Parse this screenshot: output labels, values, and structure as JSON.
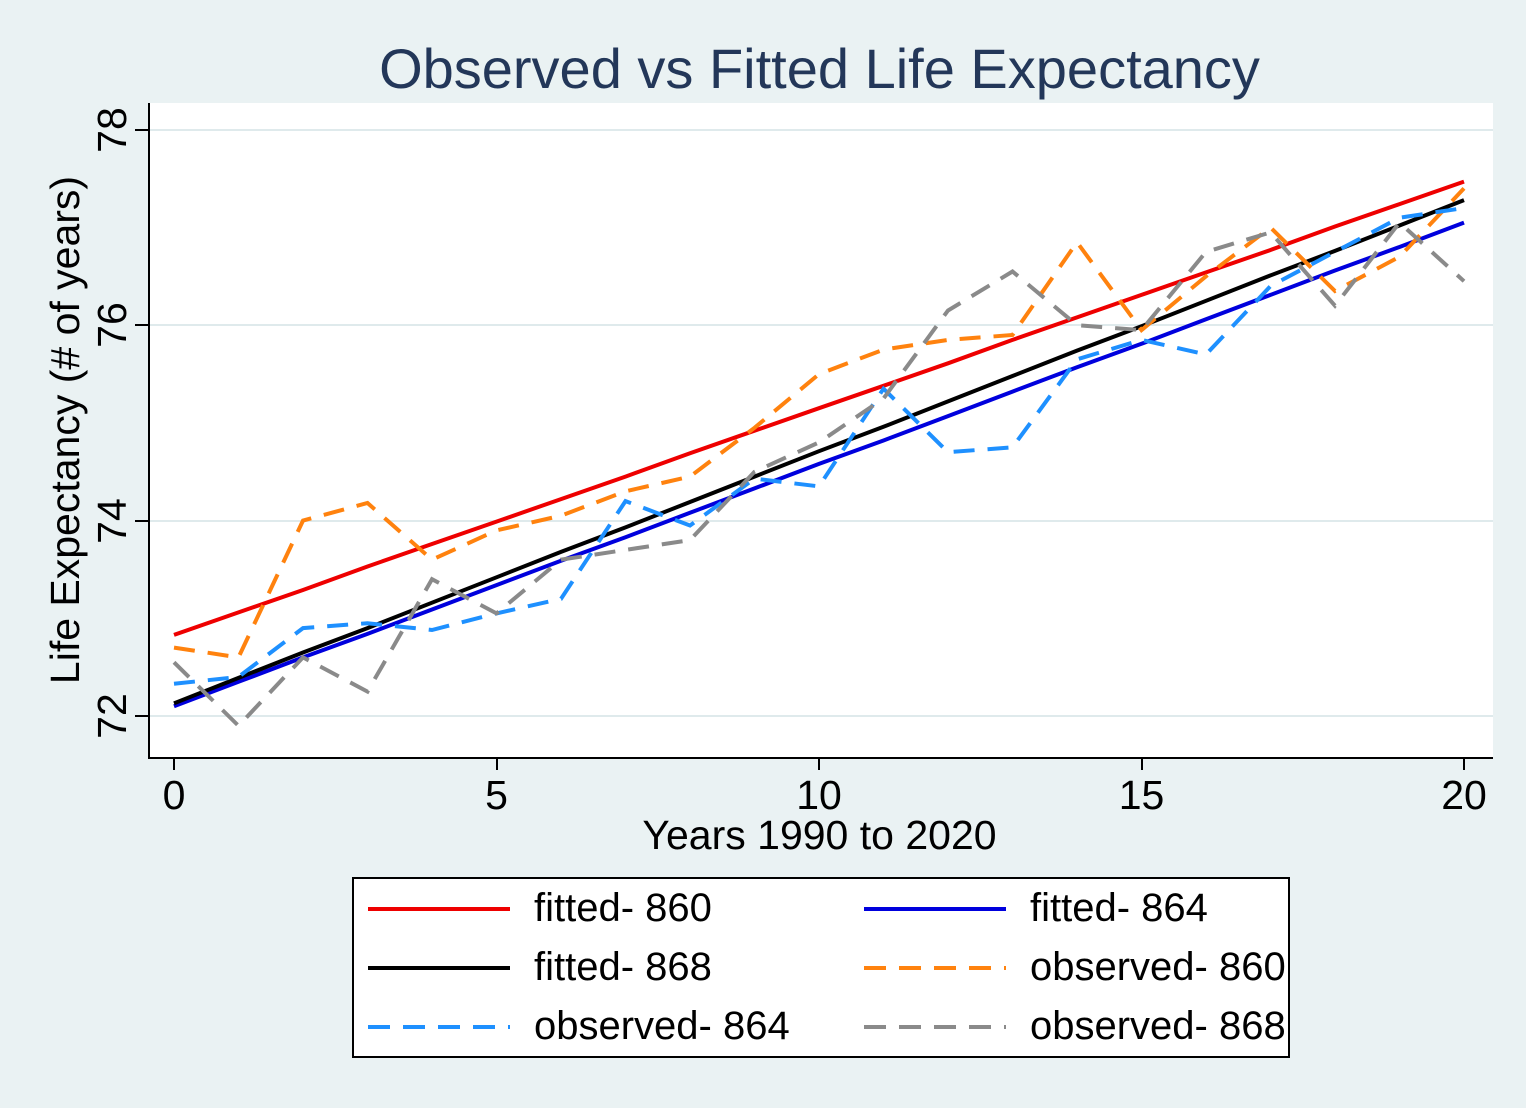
{
  "page": {
    "background_color": "#eaf2f3",
    "plot_background_color": "#ffffff",
    "gridline_color": "#dfeaec",
    "title_color": "#233759"
  },
  "chart_data": {
    "type": "line",
    "title": "Observed vs Fitted Life Expectancy",
    "xlabel": "Years 1990 to 2020",
    "ylabel": "Life Expectancy (# of years)",
    "x": [
      0,
      1,
      2,
      3,
      4,
      5,
      6,
      7,
      8,
      9,
      10,
      11,
      12,
      13,
      14,
      15,
      16,
      17,
      18,
      19,
      20
    ],
    "xticks": [
      0,
      5,
      10,
      15,
      20
    ],
    "yticks": [
      72,
      74,
      76,
      78
    ],
    "xlim": [
      -0.4,
      20.4
    ],
    "ylim": [
      71.5,
      78.3
    ],
    "grid": "horizontal gridlines only",
    "legend_position": "bottom boxed, 2 columns",
    "series": [
      {
        "name": "fitted- 860",
        "style": "solid",
        "color": "#ee0000",
        "values": [
          72.83,
          73.06,
          73.29,
          73.53,
          73.76,
          73.99,
          74.22,
          74.45,
          74.69,
          74.92,
          75.15,
          75.38,
          75.61,
          75.85,
          76.08,
          76.31,
          76.54,
          76.77,
          77.01,
          77.24,
          77.47
        ]
      },
      {
        "name": "fitted- 864",
        "style": "solid",
        "color": "#0000dd",
        "values": [
          72.1,
          72.35,
          72.6,
          72.84,
          73.09,
          73.34,
          73.59,
          73.83,
          74.08,
          74.33,
          74.58,
          74.82,
          75.07,
          75.32,
          75.57,
          75.81,
          76.06,
          76.31,
          76.56,
          76.8,
          77.05
        ]
      },
      {
        "name": "fitted- 868",
        "style": "solid",
        "color": "#000000",
        "values": [
          72.13,
          72.39,
          72.65,
          72.9,
          73.16,
          73.42,
          73.68,
          73.93,
          74.19,
          74.45,
          74.71,
          74.96,
          75.22,
          75.48,
          75.74,
          75.99,
          76.25,
          76.51,
          76.76,
          77.02,
          77.28
        ]
      },
      {
        "name": "observed- 860",
        "style": "dashed",
        "color": "#ff820e",
        "values": [
          72.7,
          72.6,
          74.0,
          74.18,
          73.6,
          73.9,
          74.05,
          74.3,
          74.45,
          74.95,
          75.5,
          75.75,
          75.85,
          75.9,
          76.85,
          75.95,
          76.5,
          77.0,
          76.35,
          76.7,
          77.4
        ]
      },
      {
        "name": "observed- 864",
        "style": "dashed",
        "color": "#1e90ff",
        "values": [
          72.33,
          72.4,
          72.9,
          72.95,
          72.88,
          73.05,
          73.2,
          74.2,
          73.95,
          74.43,
          74.35,
          75.35,
          74.7,
          74.75,
          75.65,
          75.85,
          75.7,
          76.4,
          76.75,
          77.1,
          77.2
        ]
      },
      {
        "name": "observed- 868",
        "style": "dashed",
        "color": "#8a8a8a",
        "values": [
          72.55,
          71.9,
          72.6,
          72.25,
          73.4,
          73.05,
          73.6,
          73.7,
          73.8,
          74.5,
          74.8,
          75.25,
          76.15,
          76.55,
          76.0,
          75.95,
          76.75,
          76.95,
          76.2,
          77.05,
          76.45
        ]
      }
    ]
  }
}
